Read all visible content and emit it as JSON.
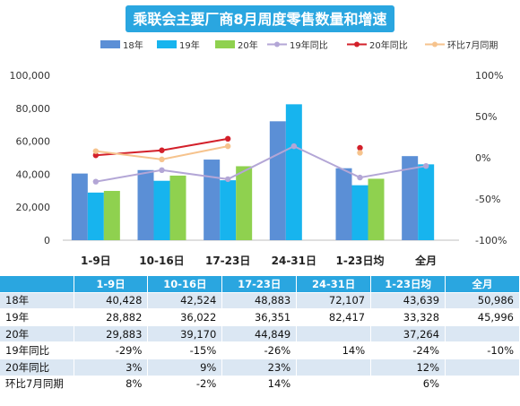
{
  "chart_data": {
    "type": "bar",
    "title": "乘联会主要厂商8月周度零售数量和增速",
    "categories": [
      "1-9日",
      "10-16日",
      "17-23日",
      "24-31日",
      "1-23日均",
      "全月"
    ],
    "series": [
      {
        "name": "18年",
        "kind": "bar",
        "axis": "left",
        "color": "#5b8fd6",
        "values": [
          40428,
          42524,
          48883,
          72107,
          43639,
          50986
        ]
      },
      {
        "name": "19年",
        "kind": "bar",
        "axis": "left",
        "color": "#17b4ee",
        "values": [
          28882,
          36022,
          36351,
          82417,
          33328,
          45996
        ]
      },
      {
        "name": "20年",
        "kind": "bar",
        "axis": "left",
        "color": "#8fd14f",
        "values": [
          29883,
          39170,
          44849,
          null,
          37264,
          null
        ]
      },
      {
        "name": "19年同比",
        "kind": "line",
        "axis": "right",
        "color": "#b3a6d6",
        "values": [
          -0.29,
          -0.15,
          -0.26,
          0.14,
          -0.24,
          -0.1
        ]
      },
      {
        "name": "20年同比",
        "kind": "line",
        "axis": "right",
        "color": "#d3202a",
        "values": [
          0.03,
          0.09,
          0.23,
          null,
          0.12,
          null
        ]
      },
      {
        "name": "环比7月同期",
        "kind": "line",
        "axis": "right",
        "color": "#f6c38d",
        "values": [
          0.08,
          -0.02,
          0.14,
          null,
          0.06,
          null
        ]
      }
    ],
    "y_left": {
      "min": 0,
      "max": 100000,
      "ticks": [
        0,
        20000,
        40000,
        60000,
        80000,
        100000
      ],
      "tick_labels": [
        "0",
        "20,000",
        "40,000",
        "60,000",
        "80,000",
        "100,000"
      ]
    },
    "y_right": {
      "min": -1,
      "max": 1,
      "ticks": [
        -1,
        -0.5,
        0,
        0.5,
        1
      ],
      "tick_labels": [
        "-100%",
        "-50%",
        "0%",
        "50%",
        "100%"
      ]
    },
    "grid": false,
    "legend_position": "top"
  },
  "table": {
    "header": [
      "",
      "1-9日",
      "10-16日",
      "17-23日",
      "24-31日",
      "1-23日均",
      "全月"
    ],
    "rows": [
      {
        "label": "18年",
        "cells": [
          "40,428",
          "42,524",
          "48,883",
          "72,107",
          "43,639",
          "50,986"
        ]
      },
      {
        "label": "19年",
        "cells": [
          "28,882",
          "36,022",
          "36,351",
          "82,417",
          "33,328",
          "45,996"
        ]
      },
      {
        "label": "20年",
        "cells": [
          "29,883",
          "39,170",
          "44,849",
          "",
          "37,264",
          ""
        ]
      },
      {
        "label": "19年同比",
        "cells": [
          "-29%",
          "-15%",
          "-26%",
          "14%",
          "-24%",
          "-10%"
        ]
      },
      {
        "label": "20年同比",
        "cells": [
          "3%",
          "9%",
          "23%",
          "",
          "12%",
          ""
        ]
      },
      {
        "label": "环比7月同期",
        "cells": [
          "8%",
          "-2%",
          "14%",
          "",
          "6%",
          ""
        ]
      }
    ]
  }
}
